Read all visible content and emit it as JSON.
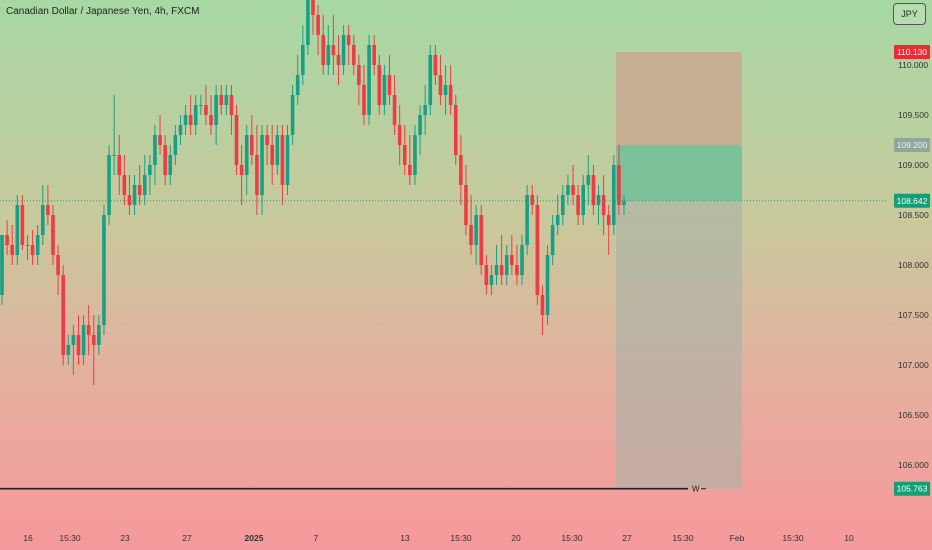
{
  "header": {
    "symbol_title": "Canadian Dollar / Japanese Yen, 4h, FXCM",
    "currency_button": "JPY"
  },
  "colors": {
    "up": "#17a086",
    "down": "#ef3b44",
    "target_zone": "#6fbf99",
    "stop_zone": "#c8a890",
    "price_tag": "#139e76",
    "stop_tag": "#ee2b35",
    "entry_tag": "#8fa69c"
  },
  "price_labels": {
    "current": "108.642",
    "stop": "110.130",
    "entry": "109.200",
    "bottom": "105.763",
    "marker": "W"
  },
  "chart_data": {
    "type": "candlestick",
    "title": "Canadian Dollar / Japanese Yen, 4h, FXCM",
    "ylim": [
      105.6,
      110.65
    ],
    "y_ticks": [
      "110.000",
      "109.500",
      "109.000",
      "108.500",
      "108.000",
      "107.500",
      "107.000",
      "106.500",
      "106.000"
    ],
    "x_ticks": [
      "16",
      "15:30",
      "23",
      "27",
      "2025",
      "7",
      "13",
      "15:30",
      "20",
      "15:30",
      "27",
      "15:30",
      "Feb",
      "15:30",
      "10"
    ],
    "current_price": 108.642,
    "position": {
      "entry": 109.2,
      "stop": 110.13,
      "target": 105.763
    },
    "candles": [
      [
        107.7,
        108.3,
        107.6,
        108.3
      ],
      [
        108.3,
        108.45,
        108.1,
        108.2
      ],
      [
        108.2,
        108.4,
        108.0,
        108.1
      ],
      [
        108.1,
        108.7,
        108.0,
        108.6
      ],
      [
        108.6,
        108.7,
        108.15,
        108.2
      ],
      [
        108.2,
        108.3,
        108.05,
        108.2
      ],
      [
        108.2,
        108.35,
        108.0,
        108.1
      ],
      [
        108.1,
        108.4,
        108.0,
        108.3
      ],
      [
        108.3,
        108.8,
        108.2,
        108.6
      ],
      [
        108.6,
        108.8,
        108.4,
        108.5
      ],
      [
        108.5,
        108.6,
        108.0,
        108.1
      ],
      [
        108.1,
        108.2,
        107.7,
        107.9
      ],
      [
        107.9,
        108.0,
        107.0,
        107.1
      ],
      [
        107.1,
        107.3,
        107.0,
        107.2
      ],
      [
        107.2,
        107.4,
        106.9,
        107.3
      ],
      [
        107.3,
        107.5,
        107.0,
        107.1
      ],
      [
        107.1,
        107.5,
        107.0,
        107.4
      ],
      [
        107.4,
        107.6,
        107.1,
        107.3
      ],
      [
        107.3,
        107.5,
        106.8,
        107.2
      ],
      [
        107.2,
        107.5,
        107.1,
        107.4
      ],
      [
        107.4,
        108.6,
        107.3,
        108.5
      ],
      [
        108.5,
        109.2,
        108.4,
        109.1
      ],
      [
        109.1,
        109.7,
        108.9,
        109.1
      ],
      [
        109.1,
        109.3,
        108.7,
        108.9
      ],
      [
        108.9,
        109.1,
        108.6,
        108.7
      ],
      [
        108.7,
        108.9,
        108.5,
        108.6
      ],
      [
        108.6,
        108.9,
        108.5,
        108.8
      ],
      [
        108.8,
        109.0,
        108.6,
        108.7
      ],
      [
        108.7,
        109.1,
        108.6,
        108.9
      ],
      [
        108.9,
        109.1,
        108.7,
        109.0
      ],
      [
        109.0,
        109.4,
        108.8,
        109.3
      ],
      [
        109.3,
        109.5,
        109.1,
        109.2
      ],
      [
        109.2,
        109.3,
        108.8,
        108.9
      ],
      [
        108.9,
        109.2,
        108.8,
        109.1
      ],
      [
        109.1,
        109.4,
        109.0,
        109.3
      ],
      [
        109.3,
        109.5,
        109.2,
        109.4
      ],
      [
        109.4,
        109.6,
        109.3,
        109.5
      ],
      [
        109.5,
        109.7,
        109.3,
        109.4
      ],
      [
        109.4,
        109.7,
        109.3,
        109.6
      ],
      [
        109.6,
        109.7,
        109.5,
        109.6
      ],
      [
        109.6,
        109.8,
        109.4,
        109.5
      ],
      [
        109.5,
        109.7,
        109.3,
        109.4
      ],
      [
        109.4,
        109.8,
        109.2,
        109.7
      ],
      [
        109.7,
        109.8,
        109.5,
        109.6
      ],
      [
        109.6,
        109.8,
        109.5,
        109.7
      ],
      [
        109.7,
        109.8,
        109.3,
        109.5
      ],
      [
        109.5,
        109.6,
        108.9,
        109.0
      ],
      [
        109.0,
        109.2,
        108.6,
        108.9
      ],
      [
        108.9,
        109.4,
        108.7,
        109.3
      ],
      [
        109.3,
        109.5,
        109.0,
        109.1
      ],
      [
        109.1,
        109.4,
        108.5,
        108.7
      ],
      [
        108.7,
        109.4,
        108.5,
        109.3
      ],
      [
        109.3,
        109.4,
        109.0,
        109.2
      ],
      [
        109.2,
        109.4,
        108.8,
        109.0
      ],
      [
        109.0,
        109.4,
        108.9,
        109.3
      ],
      [
        109.3,
        109.4,
        108.6,
        108.8
      ],
      [
        108.8,
        109.4,
        108.7,
        109.3
      ],
      [
        109.3,
        109.8,
        109.2,
        109.7
      ],
      [
        109.7,
        110.1,
        109.6,
        109.9
      ],
      [
        109.9,
        110.4,
        109.8,
        110.2
      ],
      [
        110.2,
        110.8,
        110.1,
        110.7
      ],
      [
        110.7,
        110.8,
        110.3,
        110.5
      ],
      [
        110.5,
        110.6,
        110.1,
        110.3
      ],
      [
        110.3,
        110.5,
        109.9,
        110.0
      ],
      [
        110.0,
        110.4,
        109.9,
        110.2
      ],
      [
        110.2,
        110.5,
        109.9,
        110.1
      ],
      [
        110.1,
        110.3,
        109.8,
        110.0
      ],
      [
        110.0,
        110.4,
        109.9,
        110.3
      ],
      [
        110.3,
        110.4,
        110.0,
        110.2
      ],
      [
        110.2,
        110.3,
        109.9,
        110.0
      ],
      [
        110.0,
        110.1,
        109.6,
        109.8
      ],
      [
        109.8,
        110.0,
        109.4,
        109.5
      ],
      [
        109.5,
        110.3,
        109.4,
        110.2
      ],
      [
        110.2,
        110.3,
        109.9,
        110.0
      ],
      [
        110.0,
        110.1,
        109.5,
        109.6
      ],
      [
        109.6,
        110.0,
        109.5,
        109.9
      ],
      [
        109.9,
        110.1,
        109.6,
        109.7
      ],
      [
        109.7,
        109.9,
        109.3,
        109.4
      ],
      [
        109.4,
        109.6,
        109.0,
        109.2
      ],
      [
        109.2,
        109.4,
        108.9,
        109.0
      ],
      [
        109.0,
        109.3,
        108.8,
        108.9
      ],
      [
        108.9,
        109.4,
        108.8,
        109.3
      ],
      [
        109.3,
        109.6,
        109.1,
        109.5
      ],
      [
        109.5,
        109.8,
        109.3,
        109.6
      ],
      [
        109.6,
        110.2,
        109.5,
        110.1
      ],
      [
        110.1,
        110.2,
        109.8,
        109.9
      ],
      [
        109.9,
        110.1,
        109.6,
        109.7
      ],
      [
        109.7,
        110.0,
        109.5,
        109.8
      ],
      [
        109.8,
        110.0,
        109.5,
        109.6
      ],
      [
        109.6,
        109.7,
        109.0,
        109.1
      ],
      [
        109.1,
        109.3,
        108.6,
        108.8
      ],
      [
        108.8,
        109.0,
        108.3,
        108.4
      ],
      [
        108.4,
        108.7,
        108.1,
        108.2
      ],
      [
        108.2,
        108.6,
        108.0,
        108.5
      ],
      [
        108.5,
        108.6,
        107.9,
        108.0
      ],
      [
        108.0,
        108.1,
        107.7,
        107.8
      ],
      [
        107.8,
        108.0,
        107.7,
        107.9
      ],
      [
        107.9,
        108.2,
        107.8,
        108.0
      ],
      [
        108.0,
        108.3,
        107.8,
        107.9
      ],
      [
        107.9,
        108.2,
        107.8,
        108.1
      ],
      [
        108.1,
        108.3,
        107.9,
        108.0
      ],
      [
        108.0,
        108.2,
        107.8,
        107.9
      ],
      [
        107.9,
        108.3,
        107.8,
        108.2
      ],
      [
        108.2,
        108.8,
        108.1,
        108.7
      ],
      [
        108.7,
        108.8,
        108.5,
        108.6
      ],
      [
        108.6,
        108.7,
        107.6,
        107.7
      ],
      [
        107.7,
        107.8,
        107.3,
        107.5
      ],
      [
        107.5,
        108.2,
        107.4,
        108.1
      ],
      [
        108.1,
        108.5,
        108.0,
        108.4
      ],
      [
        108.4,
        108.7,
        108.3,
        108.5
      ],
      [
        108.5,
        108.8,
        108.4,
        108.7
      ],
      [
        108.7,
        108.9,
        108.6,
        108.8
      ],
      [
        108.8,
        109.0,
        108.6,
        108.7
      ],
      [
        108.7,
        108.8,
        108.4,
        108.5
      ],
      [
        108.5,
        108.9,
        108.4,
        108.8
      ],
      [
        108.8,
        109.1,
        108.6,
        108.9
      ],
      [
        108.9,
        109.0,
        108.5,
        108.6
      ],
      [
        108.6,
        108.8,
        108.4,
        108.7
      ],
      [
        108.7,
        108.9,
        108.3,
        108.5
      ],
      [
        108.5,
        108.6,
        108.1,
        108.4
      ],
      [
        108.4,
        109.1,
        108.3,
        109.0
      ],
      [
        109.0,
        109.2,
        108.5,
        108.6
      ],
      [
        108.6,
        108.7,
        108.5,
        108.642
      ]
    ]
  }
}
